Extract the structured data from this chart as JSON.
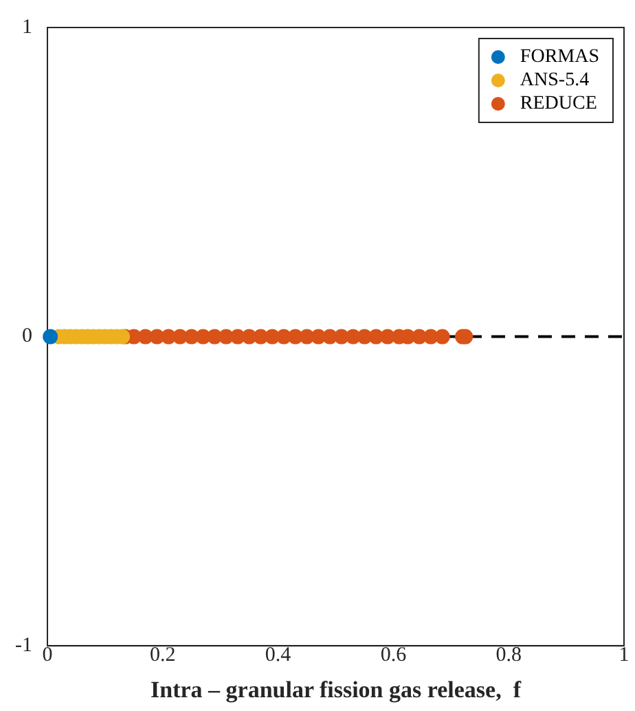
{
  "chart_data": {
    "type": "scatter",
    "xlabel": "Intra – granular fission gas release,  f",
    "xlim": [
      0,
      1
    ],
    "xticks": [
      0,
      0.2,
      0.4,
      0.6,
      0.8,
      1
    ],
    "ylim": [
      -1,
      1
    ],
    "yticks": [
      -1,
      0,
      1
    ],
    "grid": false,
    "legend": "top right",
    "marker": "circle",
    "ref_lines": [
      {
        "axis": "y",
        "value": 0,
        "color": "#000000",
        "line_style": "dashed"
      }
    ],
    "series": [
      {
        "name": "FORMAS",
        "color": "#0072bd",
        "x": [
          0.005
        ],
        "values": [
          0
        ]
      },
      {
        "name": "ANS-5.4",
        "color": "#edb120",
        "x": [
          0.02,
          0.03,
          0.04,
          0.05,
          0.06,
          0.07,
          0.08,
          0.09,
          0.1,
          0.11,
          0.12,
          0.13
        ],
        "values": [
          0,
          0,
          0,
          0,
          0,
          0,
          0,
          0,
          0,
          0,
          0,
          0
        ]
      },
      {
        "name": "REDUCE",
        "color": "#d95319",
        "x": [
          0.135,
          0.15,
          0.17,
          0.19,
          0.21,
          0.23,
          0.25,
          0.27,
          0.29,
          0.31,
          0.33,
          0.35,
          0.37,
          0.39,
          0.41,
          0.43,
          0.45,
          0.47,
          0.49,
          0.51,
          0.53,
          0.55,
          0.57,
          0.59,
          0.61,
          0.625,
          0.645,
          0.665,
          0.685,
          0.72,
          0.725
        ],
        "values": [
          0,
          0,
          0,
          0,
          0,
          0,
          0,
          0,
          0,
          0,
          0,
          0,
          0,
          0,
          0,
          0,
          0,
          0,
          0,
          0,
          0,
          0,
          0,
          0,
          0,
          0,
          0,
          0,
          0,
          0,
          0
        ]
      }
    ]
  }
}
